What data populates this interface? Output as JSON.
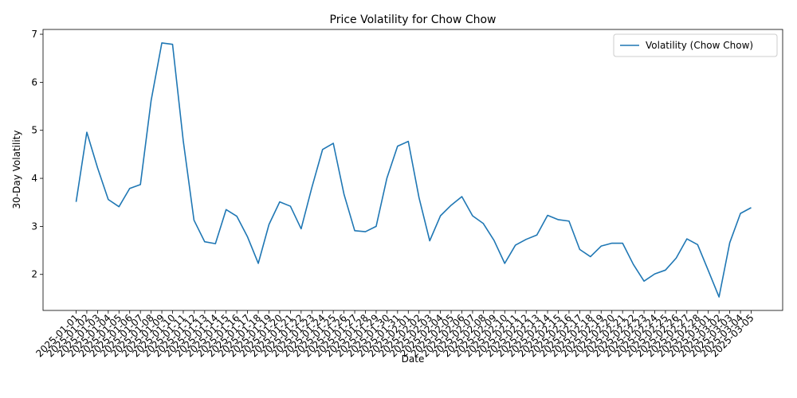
{
  "chart_data": {
    "type": "line",
    "title": "Price Volatility for Chow Chow",
    "xlabel": "Date",
    "ylabel": "30-Day Volatility",
    "ylim": [
      1.25,
      7.1
    ],
    "yticks": [
      2,
      3,
      4,
      5,
      6,
      7
    ],
    "grid": false,
    "legend_position": "top-right",
    "x": [
      "2025-01-01",
      "2025-01-02",
      "2025-01-03",
      "2025-01-04",
      "2025-01-05",
      "2025-01-06",
      "2025-01-07",
      "2025-01-08",
      "2025-01-09",
      "2025-01-10",
      "2025-01-11",
      "2025-01-12",
      "2025-01-13",
      "2025-01-14",
      "2025-01-15",
      "2025-01-16",
      "2025-01-17",
      "2025-01-18",
      "2025-01-19",
      "2025-01-20",
      "2025-01-21",
      "2025-01-22",
      "2025-01-23",
      "2025-01-24",
      "2025-01-25",
      "2025-01-26",
      "2025-01-27",
      "2025-01-28",
      "2025-01-29",
      "2025-01-30",
      "2025-01-31",
      "2025-02-01",
      "2025-02-02",
      "2025-02-03",
      "2025-02-04",
      "2025-02-05",
      "2025-02-06",
      "2025-02-07",
      "2025-02-08",
      "2025-02-09",
      "2025-02-10",
      "2025-02-11",
      "2025-02-12",
      "2025-02-13",
      "2025-02-14",
      "2025-02-15",
      "2025-02-16",
      "2025-02-17",
      "2025-02-18",
      "2025-02-19",
      "2025-02-20",
      "2025-02-21",
      "2025-02-22",
      "2025-02-23",
      "2025-02-24",
      "2025-02-25",
      "2025-02-26",
      "2025-02-27",
      "2025-02-28",
      "2025-03-01",
      "2025-03-02",
      "2025-03-03",
      "2025-03-04",
      "2025-03-05"
    ],
    "series": [
      {
        "name": "Volatility (Chow Chow)",
        "color": "#1f77b4",
        "values": [
          3.51,
          4.96,
          4.22,
          3.56,
          3.41,
          3.79,
          3.87,
          5.62,
          6.82,
          6.79,
          4.78,
          3.13,
          2.68,
          2.64,
          3.35,
          3.21,
          2.78,
          2.23,
          3.04,
          3.51,
          3.42,
          2.95,
          3.81,
          4.6,
          4.73,
          3.67,
          2.91,
          2.89,
          3.0,
          4.0,
          4.67,
          4.77,
          3.6,
          2.7,
          3.22,
          3.44,
          3.62,
          3.22,
          3.06,
          2.71,
          2.23,
          2.61,
          2.73,
          2.82,
          3.23,
          3.14,
          3.11,
          2.52,
          2.37,
          2.59,
          2.65,
          2.65,
          2.21,
          1.86,
          2.01,
          2.09,
          2.34,
          2.74,
          2.62,
          2.08,
          1.53,
          2.66,
          3.27,
          3.39
        ]
      }
    ]
  }
}
